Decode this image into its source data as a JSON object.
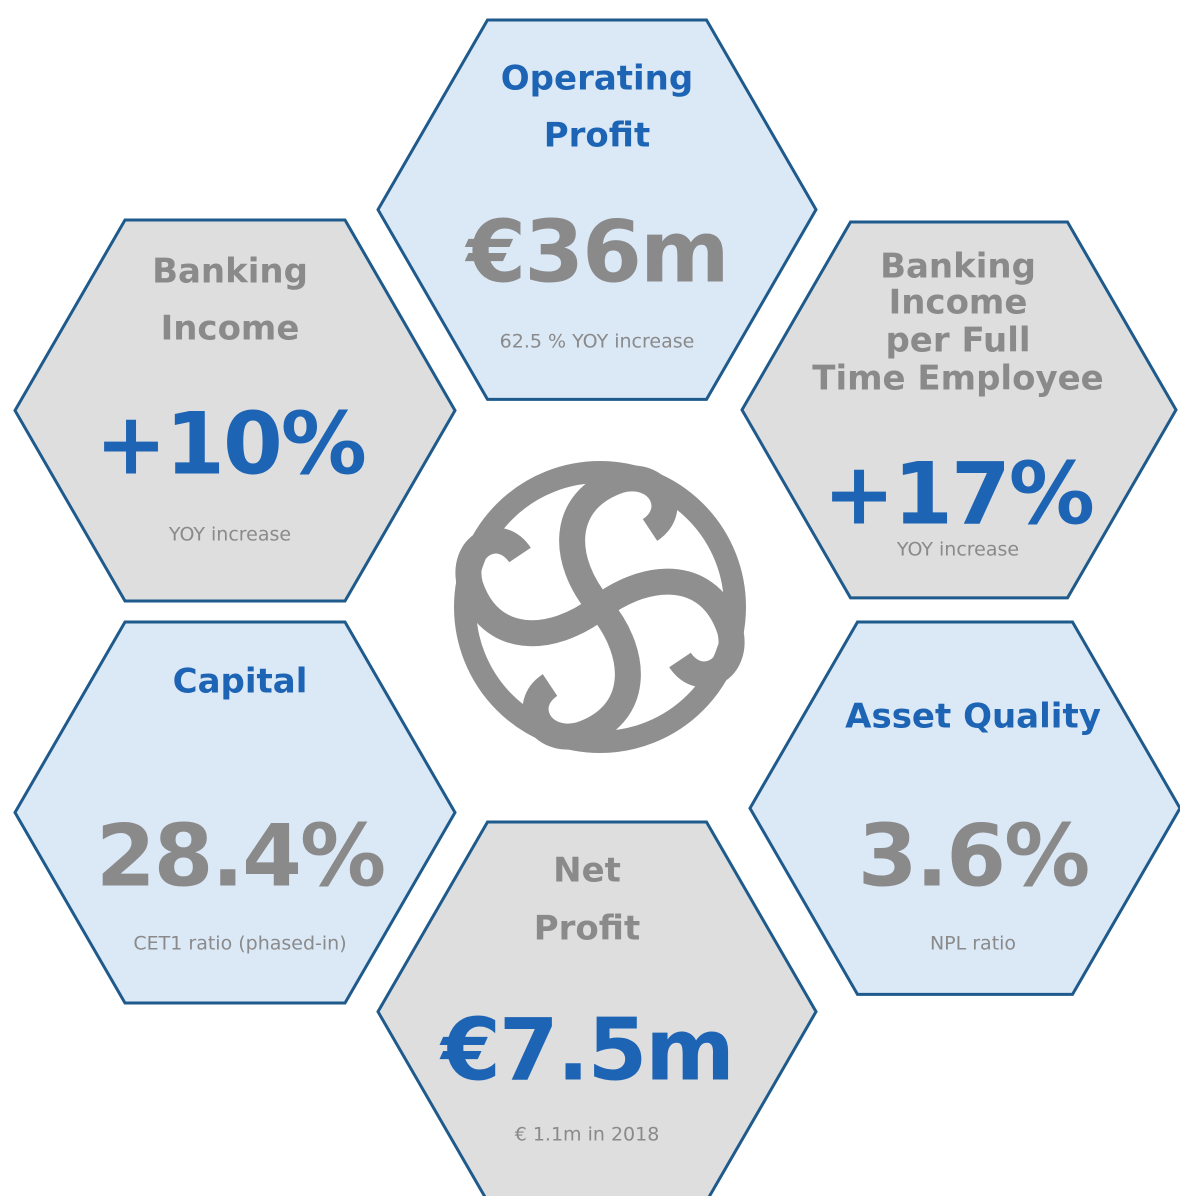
{
  "tiles": [
    {
      "title": [
        "Operating",
        "Profit"
      ],
      "value": "€36m",
      "caption": "62.5 % YOY increase"
    },
    {
      "title": [
        "Banking",
        "Income"
      ],
      "value": "+10%",
      "caption": "YOY increase"
    },
    {
      "title": [
        "Banking",
        "Income",
        "per Full",
        "Time Employee"
      ],
      "value": "+17%",
      "caption": "YOY increase"
    },
    {
      "title": [
        "Capital"
      ],
      "value": "28.4%",
      "caption": "CET1 ratio (phased-in)"
    },
    {
      "title": [
        "Asset Quality"
      ],
      "value": "3.6%",
      "caption": "NPL ratio"
    },
    {
      "title": [
        "Net",
        "Profit"
      ],
      "value": "€7.5m",
      "caption": "€ 1.1m in 2018"
    }
  ]
}
